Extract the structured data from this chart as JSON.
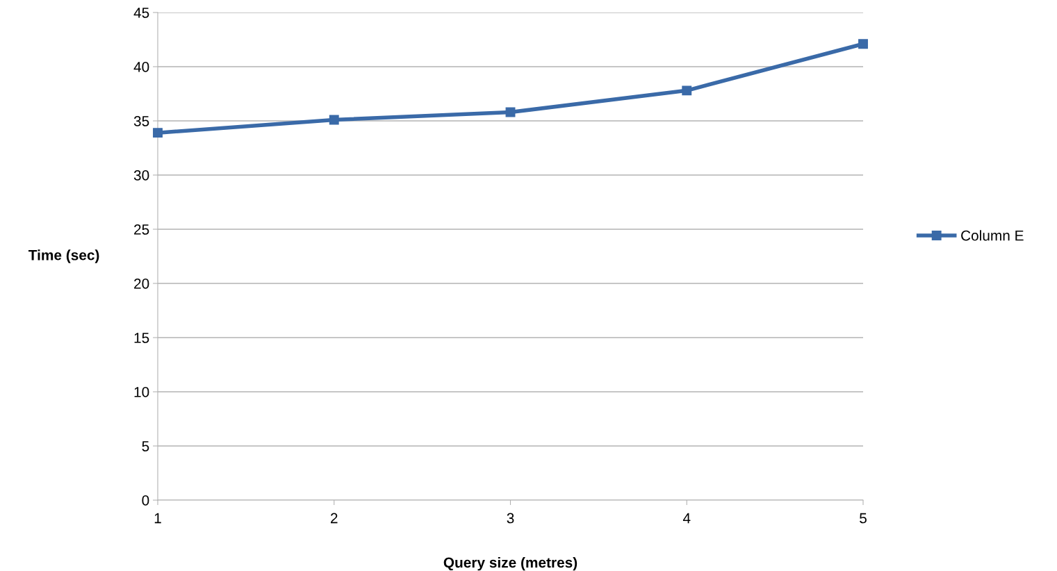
{
  "chart_data": {
    "type": "line",
    "xlabel": "Query size (metres)",
    "ylabel": "Time (sec)",
    "x": [
      1,
      2,
      3,
      4,
      5
    ],
    "series": [
      {
        "name": "Column E",
        "color": "#3a6aa8",
        "values": [
          33.9,
          35.1,
          35.8,
          37.8,
          42.1
        ]
      }
    ],
    "xlim": [
      1,
      5
    ],
    "xticks": [
      1,
      2,
      3,
      4,
      5
    ],
    "ylim": [
      0,
      45
    ],
    "yticks": [
      0,
      5,
      10,
      15,
      20,
      25,
      30,
      35,
      40,
      45
    ],
    "grid": "y",
    "legend": "right",
    "marker": "square",
    "line_style": "solid"
  }
}
